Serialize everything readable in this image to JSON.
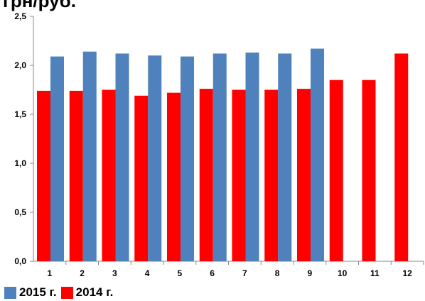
{
  "chart_data": {
    "type": "bar",
    "title": "грн/руб.",
    "xlabel": "",
    "ylabel": "",
    "categories": [
      "1",
      "2",
      "3",
      "4",
      "5",
      "6",
      "7",
      "8",
      "9",
      "10",
      "11",
      "12"
    ],
    "series": [
      {
        "name": "2014 г.",
        "color": "#ff0000",
        "values": [
          1.74,
          1.74,
          1.75,
          1.69,
          1.72,
          1.76,
          1.75,
          1.75,
          1.76,
          1.85,
          1.85,
          2.12
        ]
      },
      {
        "name": "2015 г.",
        "color": "#4f81bd",
        "values": [
          2.09,
          2.14,
          2.12,
          2.1,
          2.09,
          2.12,
          2.13,
          2.12,
          2.17,
          null,
          null,
          null
        ]
      }
    ],
    "ylim": [
      0,
      2.5
    ],
    "yticks": [
      "0,0",
      "0,5",
      "1,0",
      "1,5",
      "2,0",
      "2,5"
    ],
    "grid": false,
    "legend": {
      "position": "bottom-left",
      "items": [
        {
          "label": "2015 г.",
          "color": "#4f81bd"
        },
        {
          "label": "2014 г.",
          "color": "#ff0000"
        }
      ]
    }
  }
}
